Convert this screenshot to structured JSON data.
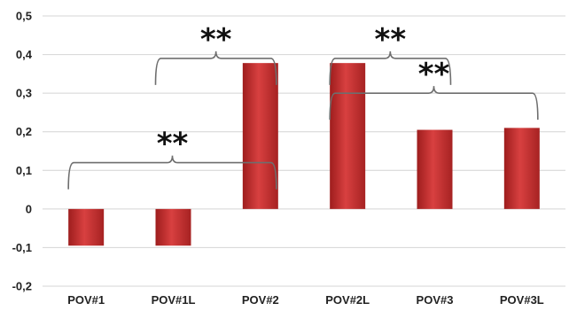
{
  "chart_data": {
    "type": "bar",
    "categories": [
      "POV#1",
      "POV#1L",
      "POV#2",
      "POV#2L",
      "POV#3",
      "POV#3L"
    ],
    "values": [
      -0.095,
      -0.095,
      0.378,
      0.378,
      0.205,
      0.21
    ],
    "ylim": [
      -0.2,
      0.5
    ],
    "yticks": [
      0.5,
      0.4,
      0.3,
      0.2,
      0.1,
      0,
      -0.1,
      -0.2
    ],
    "ytick_labels": [
      "0,5",
      "0,4",
      "0,3",
      "0,2",
      "0,1",
      "0",
      "-0,1",
      "-0,2"
    ],
    "grid": true,
    "title": "",
    "xlabel": "",
    "ylabel": "",
    "bar_color": "#c42a2a",
    "annotations": [
      {
        "label": "**",
        "from": "POV#1",
        "to": "POV#2",
        "level": 0.12
      },
      {
        "label": "**",
        "from": "POV#1L",
        "to": "POV#2",
        "level": 0.39
      },
      {
        "label": "**",
        "from": "POV#2L",
        "to": "POV#3",
        "level": 0.39
      },
      {
        "label": "**",
        "from": "POV#2L",
        "to": "POV#3L",
        "level": 0.3
      }
    ]
  }
}
